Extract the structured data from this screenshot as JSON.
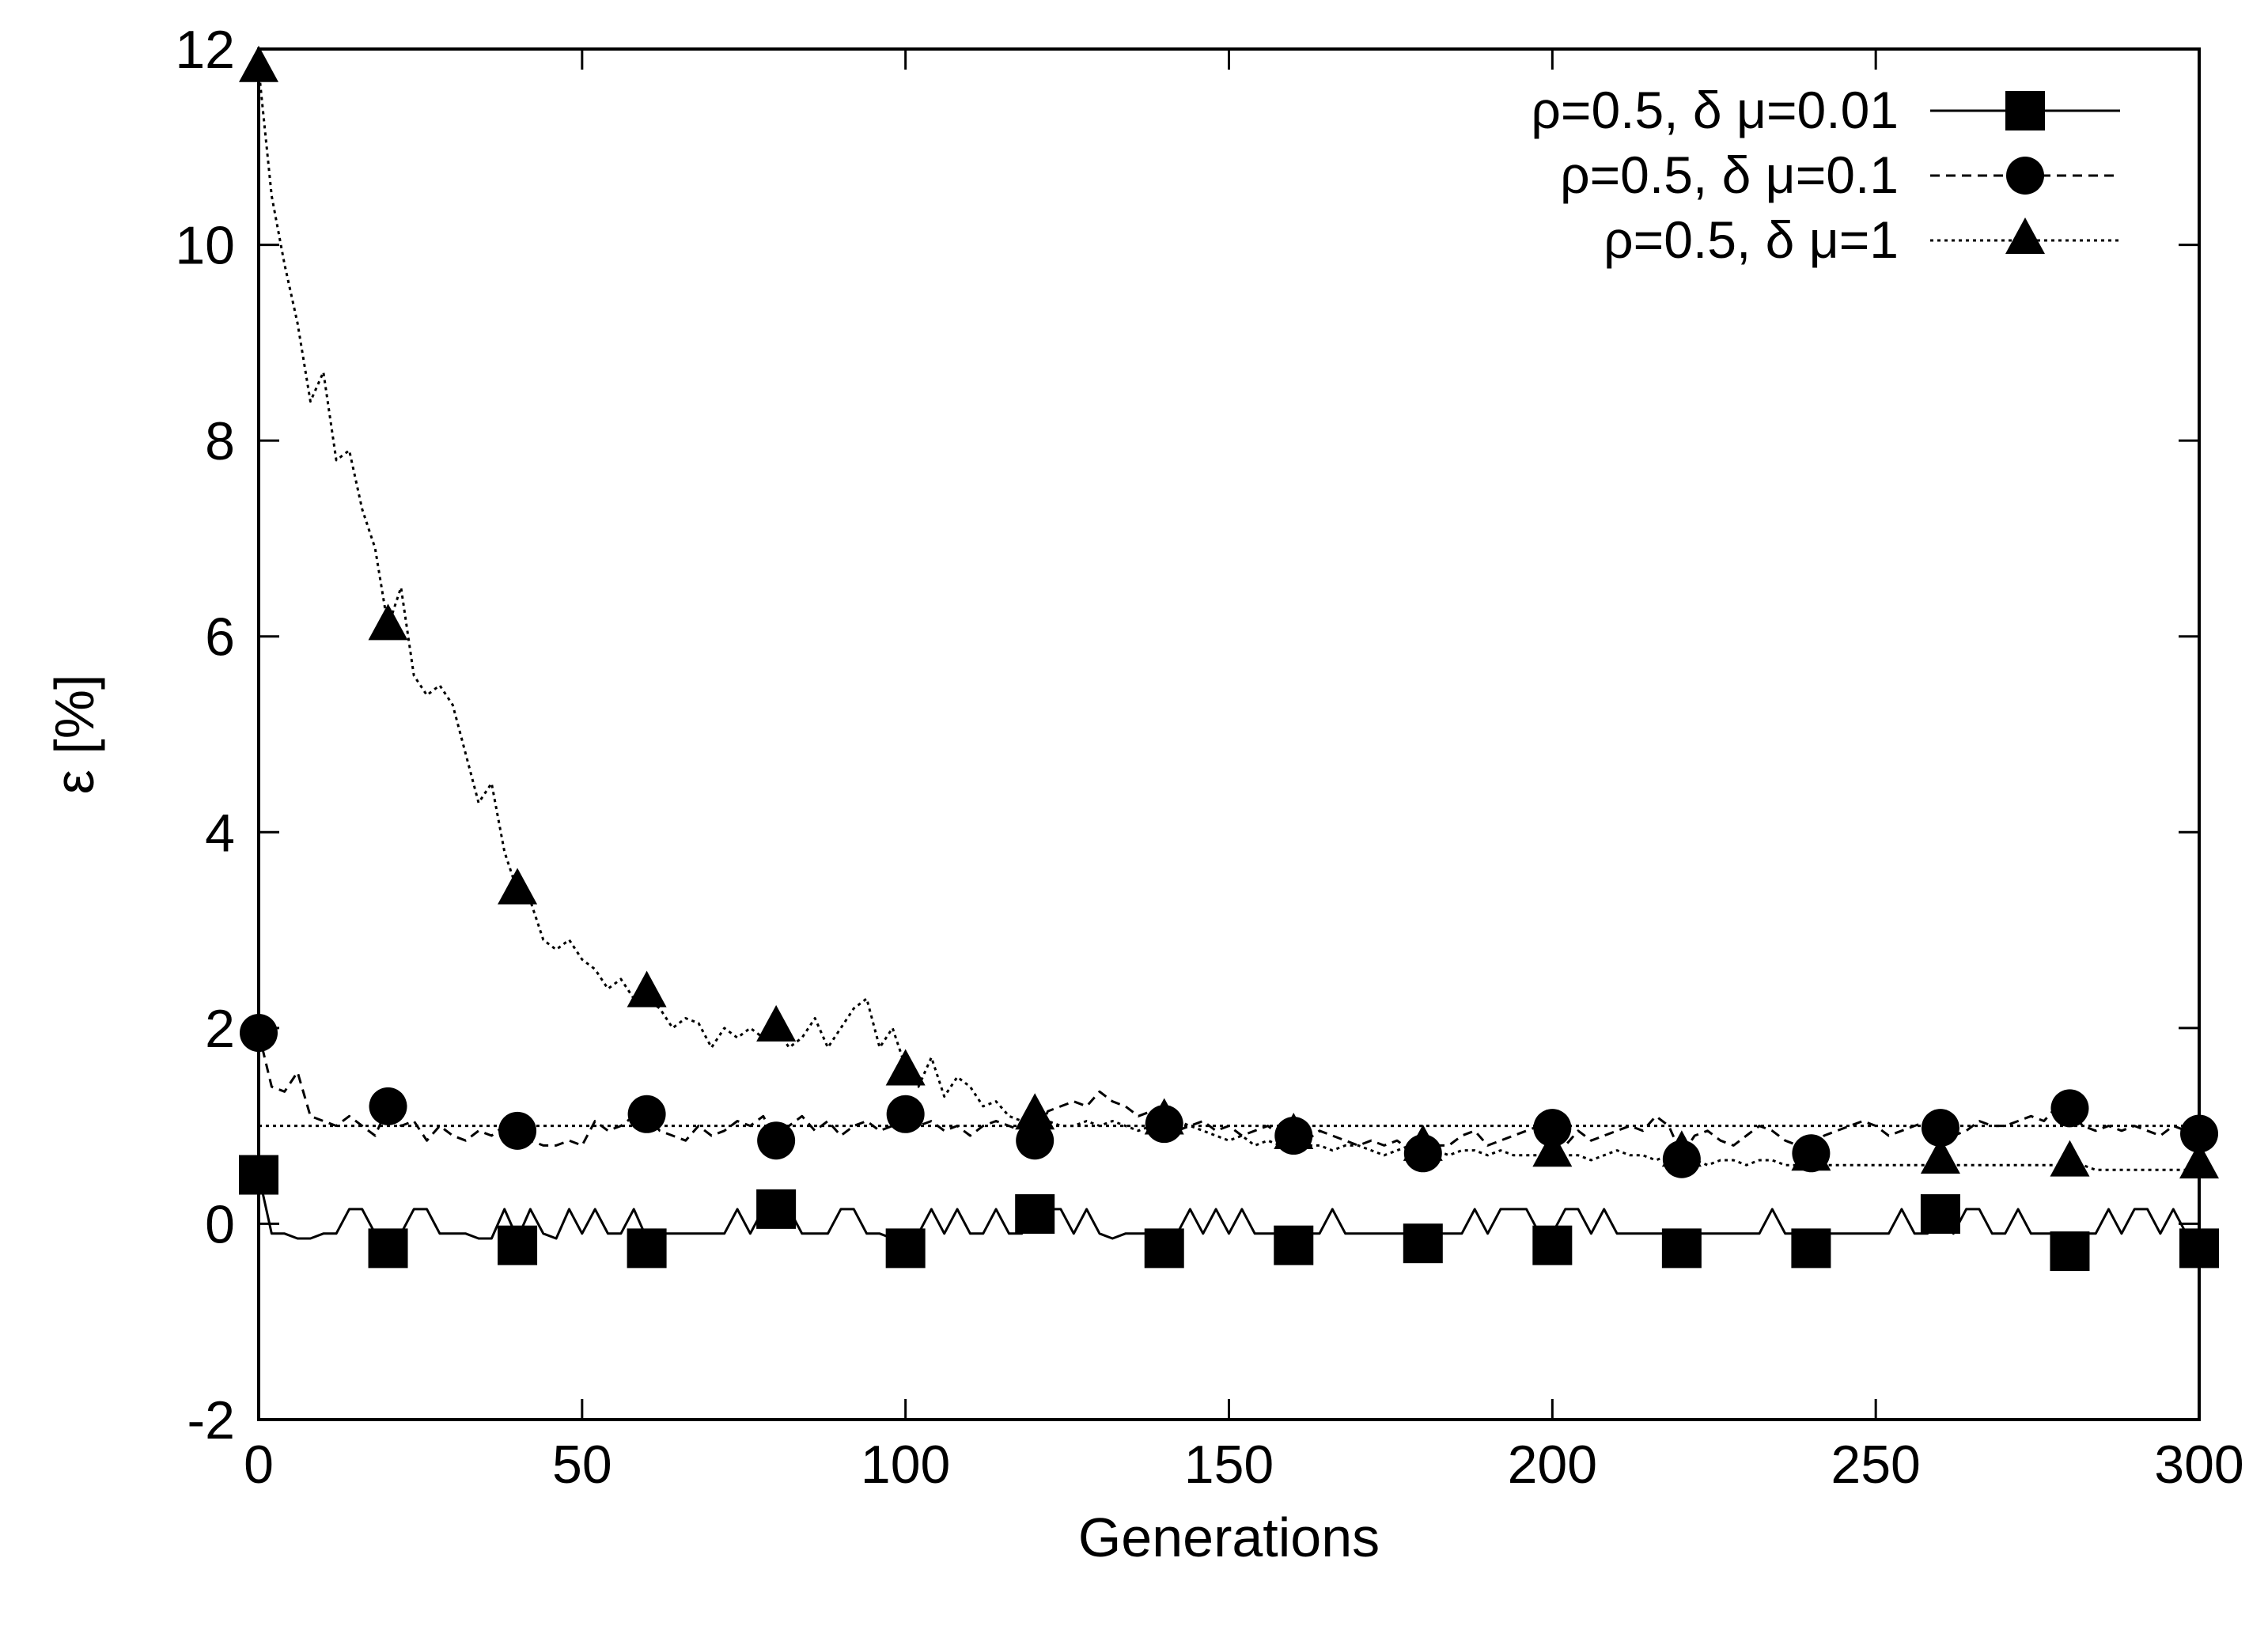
{
  "chart_data": {
    "type": "line",
    "title": "",
    "xlabel": "Generations",
    "ylabel": "ε [%]",
    "xlim": [
      0,
      300
    ],
    "ylim": [
      -2,
      12
    ],
    "x_ticks": [
      0,
      50,
      100,
      150,
      200,
      250,
      300
    ],
    "y_ticks": [
      -2,
      0,
      2,
      4,
      6,
      8,
      10,
      12
    ],
    "grid": false,
    "legend_position": "top-right",
    "reference_line": {
      "y": 1,
      "style": "dotted"
    },
    "series": [
      {
        "name": "ρ=0.5, δ μ=0.01",
        "marker": "square",
        "line_style": "solid",
        "x": [
          0,
          2,
          4,
          6,
          8,
          10,
          12,
          14,
          16,
          18,
          20,
          22,
          24,
          26,
          28,
          30,
          32,
          34,
          36,
          38,
          40,
          42,
          44,
          46,
          48,
          50,
          52,
          54,
          56,
          58,
          60,
          62,
          64,
          66,
          68,
          70,
          72,
          74,
          76,
          78,
          80,
          82,
          84,
          86,
          88,
          90,
          92,
          94,
          96,
          98,
          100,
          102,
          104,
          106,
          108,
          110,
          112,
          114,
          116,
          118,
          120,
          122,
          124,
          126,
          128,
          130,
          132,
          134,
          136,
          138,
          140,
          142,
          144,
          146,
          148,
          150,
          152,
          154,
          156,
          158,
          160,
          162,
          164,
          166,
          168,
          170,
          172,
          174,
          176,
          178,
          180,
          182,
          184,
          186,
          188,
          190,
          192,
          194,
          196,
          198,
          200,
          202,
          204,
          206,
          208,
          210,
          212,
          214,
          216,
          218,
          220,
          222,
          224,
          226,
          228,
          230,
          232,
          234,
          236,
          238,
          240,
          242,
          244,
          246,
          248,
          250,
          252,
          254,
          256,
          258,
          260,
          262,
          264,
          266,
          268,
          270,
          272,
          274,
          276,
          278,
          280,
          282,
          284,
          286,
          288,
          290,
          292,
          294,
          296,
          298,
          300
        ],
        "y": [
          0.5,
          -0.1,
          -0.1,
          -0.15,
          -0.15,
          -0.1,
          -0.1,
          0.15,
          0.15,
          -0.1,
          -0.15,
          -0.1,
          0.15,
          0.15,
          -0.1,
          -0.1,
          -0.1,
          -0.15,
          -0.15,
          0.15,
          -0.15,
          0.15,
          -0.1,
          -0.15,
          0.15,
          -0.1,
          0.15,
          -0.1,
          -0.1,
          0.15,
          -0.15,
          -0.1,
          -0.1,
          -0.1,
          -0.1,
          -0.1,
          -0.1,
          0.15,
          -0.1,
          0.15,
          0.15,
          0.15,
          -0.1,
          -0.1,
          -0.1,
          0.15,
          0.15,
          -0.1,
          -0.1,
          -0.15,
          -0.15,
          -0.1,
          0.15,
          -0.1,
          0.15,
          -0.1,
          -0.1,
          0.15,
          -0.1,
          -0.1,
          0.15,
          0.15,
          0.15,
          -0.1,
          0.15,
          -0.1,
          -0.15,
          -0.1,
          -0.1,
          -0.1,
          -0.15,
          -0.1,
          0.15,
          -0.1,
          0.15,
          -0.1,
          0.15,
          -0.1,
          -0.1,
          -0.1,
          -0.15,
          -0.1,
          -0.1,
          0.15,
          -0.1,
          -0.1,
          -0.1,
          -0.1,
          -0.1,
          -0.1,
          -0.1,
          -0.1,
          -0.1,
          -0.1,
          0.15,
          -0.1,
          0.15,
          0.15,
          0.15,
          -0.1,
          -0.1,
          0.15,
          0.15,
          -0.1,
          0.15,
          -0.1,
          -0.1,
          -0.1,
          -0.1,
          -0.1,
          -0.15,
          -0.1,
          -0.1,
          -0.1,
          -0.1,
          -0.1,
          -0.1,
          0.15,
          -0.1,
          -0.1,
          -0.15,
          -0.1,
          -0.1,
          -0.1,
          -0.1,
          -0.1,
          -0.1,
          0.15,
          -0.1,
          -0.1,
          0.15,
          -0.1,
          0.15,
          0.15,
          -0.1,
          -0.1,
          0.15,
          -0.1,
          -0.1,
          -0.1,
          -0.15,
          -0.1,
          -0.1,
          0.15,
          -0.1,
          0.15,
          0.15,
          -0.1,
          0.15,
          -0.1,
          -0.15
        ],
        "markers": {
          "x": [
            0,
            20,
            40,
            60,
            80,
            100,
            120,
            140,
            160,
            180,
            200,
            220,
            240,
            260,
            280,
            300
          ],
          "y": [
            0.5,
            -0.25,
            -0.22,
            -0.25,
            0.15,
            -0.25,
            0.1,
            -0.25,
            -0.22,
            -0.2,
            -0.22,
            -0.25,
            -0.25,
            0.1,
            -0.28,
            -0.25
          ]
        }
      },
      {
        "name": "ρ=0.5, δ μ=0.1",
        "marker": "circle",
        "line_style": "dashed",
        "x": [
          0,
          2,
          4,
          6,
          8,
          10,
          12,
          14,
          16,
          18,
          20,
          22,
          24,
          26,
          28,
          30,
          32,
          34,
          36,
          38,
          40,
          42,
          44,
          46,
          48,
          50,
          52,
          54,
          56,
          58,
          60,
          62,
          64,
          66,
          68,
          70,
          72,
          74,
          76,
          78,
          80,
          82,
          84,
          86,
          88,
          90,
          92,
          94,
          96,
          98,
          100,
          102,
          104,
          106,
          108,
          110,
          112,
          114,
          116,
          118,
          120,
          122,
          124,
          126,
          128,
          130,
          132,
          134,
          136,
          138,
          140,
          142,
          144,
          146,
          148,
          150,
          152,
          154,
          156,
          158,
          160,
          162,
          164,
          166,
          168,
          170,
          172,
          174,
          176,
          178,
          180,
          182,
          184,
          186,
          188,
          190,
          192,
          194,
          196,
          198,
          200,
          202,
          204,
          206,
          208,
          210,
          212,
          214,
          216,
          218,
          220,
          222,
          224,
          226,
          228,
          230,
          232,
          234,
          236,
          238,
          240,
          242,
          244,
          246,
          248,
          250,
          252,
          254,
          256,
          258,
          260,
          262,
          264,
          266,
          268,
          270,
          272,
          274,
          276,
          278,
          280,
          282,
          284,
          286,
          288,
          290,
          292,
          294,
          296,
          298,
          300
        ],
        "y": [
          1.95,
          1.4,
          1.35,
          1.55,
          1.1,
          1.05,
          1.0,
          1.1,
          1.0,
          0.9,
          1.2,
          1.0,
          1.05,
          0.85,
          1.0,
          0.9,
          0.85,
          0.95,
          0.9,
          1.0,
          0.95,
          0.85,
          0.8,
          0.8,
          0.85,
          0.8,
          1.05,
          0.95,
          1.0,
          1.1,
          1.1,
          0.95,
          0.9,
          0.85,
          1.0,
          0.9,
          0.95,
          1.05,
          1.0,
          1.1,
          0.85,
          1.0,
          1.1,
          0.95,
          1.05,
          0.9,
          1.0,
          1.05,
          0.95,
          1.0,
          1.1,
          1.0,
          1.05,
          0.95,
          1.0,
          0.9,
          1.0,
          1.05,
          1.0,
          0.95,
          0.85,
          1.15,
          1.2,
          1.25,
          1.2,
          1.35,
          1.25,
          1.2,
          1.1,
          1.15,
          1.05,
          0.95,
          1.0,
          1.05,
          0.95,
          1.0,
          0.9,
          0.95,
          1.0,
          0.9,
          0.9,
          0.85,
          0.95,
          0.9,
          0.85,
          0.8,
          0.85,
          0.8,
          0.85,
          0.75,
          0.75,
          0.8,
          0.8,
          0.9,
          0.95,
          0.8,
          0.85,
          0.9,
          0.95,
          1.0,
          1.0,
          0.8,
          0.95,
          0.85,
          0.9,
          0.95,
          1.0,
          0.95,
          1.1,
          1.0,
          0.7,
          0.9,
          0.95,
          0.85,
          0.8,
          0.9,
          1.0,
          0.95,
          0.85,
          0.8,
          0.75,
          0.9,
          0.95,
          1.0,
          1.05,
          1.0,
          0.9,
          0.95,
          1.0,
          1.05,
          1.0,
          0.9,
          0.95,
          1.05,
          1.0,
          1.0,
          1.05,
          1.1,
          1.05,
          1.2,
          1.15,
          1.0,
          0.95,
          1.0,
          0.95,
          1.0,
          0.95,
          0.9,
          1.0,
          0.95,
          0.9
        ],
        "markers": {
          "x": [
            0,
            20,
            40,
            60,
            80,
            100,
            120,
            140,
            160,
            180,
            200,
            220,
            240,
            260,
            280,
            300
          ],
          "y": [
            1.95,
            1.2,
            0.95,
            1.12,
            0.85,
            1.12,
            0.85,
            1.02,
            0.9,
            0.72,
            0.98,
            0.66,
            0.72,
            0.98,
            1.18,
            0.92
          ]
        }
      },
      {
        "name": "ρ=0.5, δ μ=1",
        "marker": "triangle",
        "line_style": "dotted",
        "x": [
          0,
          2,
          4,
          6,
          8,
          10,
          12,
          14,
          16,
          18,
          20,
          22,
          24,
          26,
          28,
          30,
          32,
          34,
          36,
          38,
          40,
          42,
          44,
          46,
          48,
          50,
          52,
          54,
          56,
          58,
          60,
          62,
          64,
          66,
          68,
          70,
          72,
          74,
          76,
          78,
          80,
          82,
          84,
          86,
          88,
          90,
          92,
          94,
          96,
          98,
          100,
          102,
          104,
          106,
          108,
          110,
          112,
          114,
          116,
          118,
          120,
          122,
          124,
          126,
          128,
          130,
          132,
          134,
          136,
          138,
          140,
          142,
          144,
          146,
          148,
          150,
          152,
          154,
          156,
          158,
          160,
          162,
          164,
          166,
          168,
          170,
          172,
          174,
          176,
          178,
          180,
          182,
          184,
          186,
          188,
          190,
          192,
          194,
          196,
          198,
          200,
          202,
          204,
          206,
          208,
          210,
          212,
          214,
          216,
          218,
          220,
          222,
          224,
          226,
          228,
          230,
          232,
          234,
          236,
          238,
          240,
          242,
          244,
          246,
          248,
          250,
          252,
          254,
          256,
          258,
          260,
          262,
          264,
          266,
          268,
          270,
          272,
          274,
          276,
          278,
          280,
          282,
          284,
          286,
          288,
          290,
          292,
          294,
          296,
          298,
          300
        ],
        "y": [
          11.8,
          10.5,
          9.8,
          9.2,
          8.4,
          8.7,
          7.8,
          7.9,
          7.3,
          6.9,
          6.1,
          6.5,
          5.6,
          5.4,
          5.5,
          5.3,
          4.8,
          4.3,
          4.5,
          3.8,
          3.4,
          3.3,
          2.9,
          2.8,
          2.9,
          2.7,
          2.6,
          2.4,
          2.5,
          2.3,
          2.3,
          2.2,
          2.0,
          2.1,
          2.05,
          1.8,
          2.0,
          1.9,
          2.0,
          1.9,
          2.0,
          1.8,
          1.9,
          2.1,
          1.8,
          2.0,
          2.2,
          2.3,
          1.8,
          2.0,
          1.6,
          1.4,
          1.7,
          1.3,
          1.5,
          1.4,
          1.2,
          1.25,
          1.1,
          1.05,
          1.0,
          1.05,
          1.0,
          1.0,
          1.05,
          1.0,
          1.05,
          1.0,
          0.95,
          1.0,
          1.0,
          1.05,
          1.0,
          0.95,
          0.9,
          0.85,
          0.9,
          0.8,
          0.85,
          0.8,
          0.85,
          0.8,
          0.8,
          0.75,
          0.8,
          0.8,
          0.75,
          0.7,
          0.75,
          0.8,
          0.75,
          0.75,
          0.7,
          0.75,
          0.75,
          0.7,
          0.75,
          0.7,
          0.7,
          0.7,
          0.7,
          0.7,
          0.7,
          0.65,
          0.7,
          0.75,
          0.7,
          0.7,
          0.65,
          0.7,
          0.7,
          0.65,
          0.6,
          0.65,
          0.65,
          0.6,
          0.65,
          0.65,
          0.6,
          0.6,
          0.6,
          0.6,
          0.6,
          0.6,
          0.6,
          0.6,
          0.6,
          0.6,
          0.6,
          0.6,
          0.6,
          0.6,
          0.6,
          0.6,
          0.6,
          0.6,
          0.6,
          0.6,
          0.6,
          0.6,
          0.6,
          0.6,
          0.55,
          0.55,
          0.55,
          0.55,
          0.55,
          0.55,
          0.55,
          0.55,
          0.55
        ],
        "markers": {
          "x": [
            0,
            20,
            40,
            60,
            80,
            100,
            120,
            140,
            160,
            180,
            200,
            220,
            240,
            260,
            280,
            300
          ],
          "y": [
            11.8,
            6.1,
            3.4,
            2.35,
            2.0,
            1.55,
            1.1,
            1.05,
            0.9,
            0.78,
            0.72,
            0.72,
            0.68,
            0.65,
            0.62,
            0.6
          ]
        }
      }
    ]
  }
}
